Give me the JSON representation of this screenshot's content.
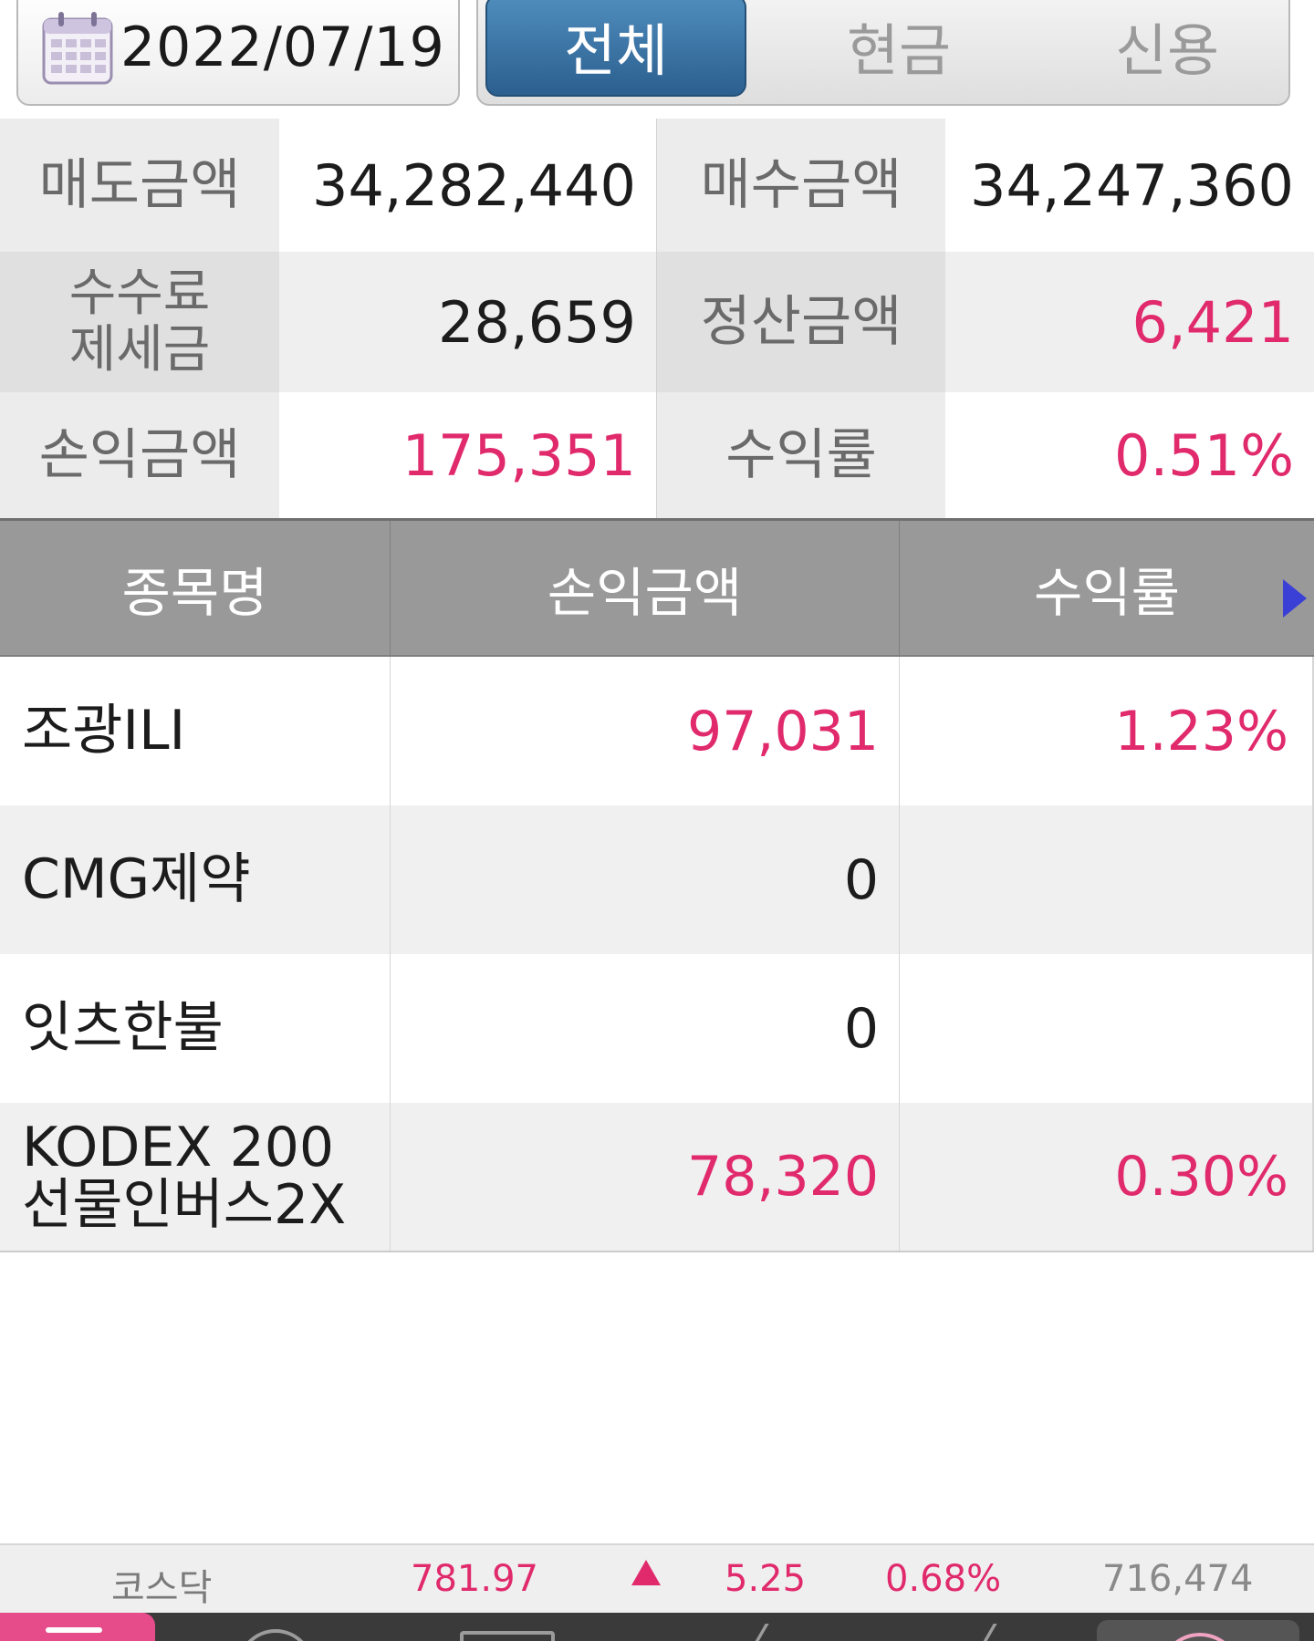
{
  "filter": {
    "date": "2022/07/19",
    "tabs": [
      "전체",
      "현금",
      "신용"
    ],
    "active_tab": "전체"
  },
  "summary": {
    "sell_amount_label": "매도금액",
    "sell_amount": "34,282,440",
    "buy_amount_label": "매수금액",
    "buy_amount": "34,247,360",
    "fee_tax_label_1": "수수료",
    "fee_tax_label_2": "제세금",
    "fee_tax": "28,659",
    "settlement_label": "정산금액",
    "settlement": "6,421",
    "pnl_label": "손익금액",
    "pnl": "175,351",
    "return_label": "수익률",
    "return_rate": "0.51%"
  },
  "table": {
    "headers": [
      "종목명",
      "손익금액",
      "수익률"
    ],
    "rows": [
      {
        "name": "조광ILI",
        "name2": "",
        "pnl": "97,031",
        "rate": "1.23%"
      },
      {
        "name": "CMG제약",
        "name2": "",
        "pnl": "0",
        "rate": ""
      },
      {
        "name": "잇츠한불",
        "name2": "",
        "pnl": "0",
        "rate": ""
      },
      {
        "name": "KODEX 200",
        "name2": "선물인버스2X",
        "pnl": "78,320",
        "rate": "0.30%"
      }
    ]
  },
  "ticker": {
    "name": "코스닥",
    "value": "781.97",
    "direction_icon": "up-triangle-icon",
    "change": "5.25",
    "change_pct": "0.68%",
    "volume": "716,474"
  },
  "colors": {
    "positive": "#e02a6c",
    "tab_active": "#2b5f8f",
    "header_bg": "#999999"
  }
}
